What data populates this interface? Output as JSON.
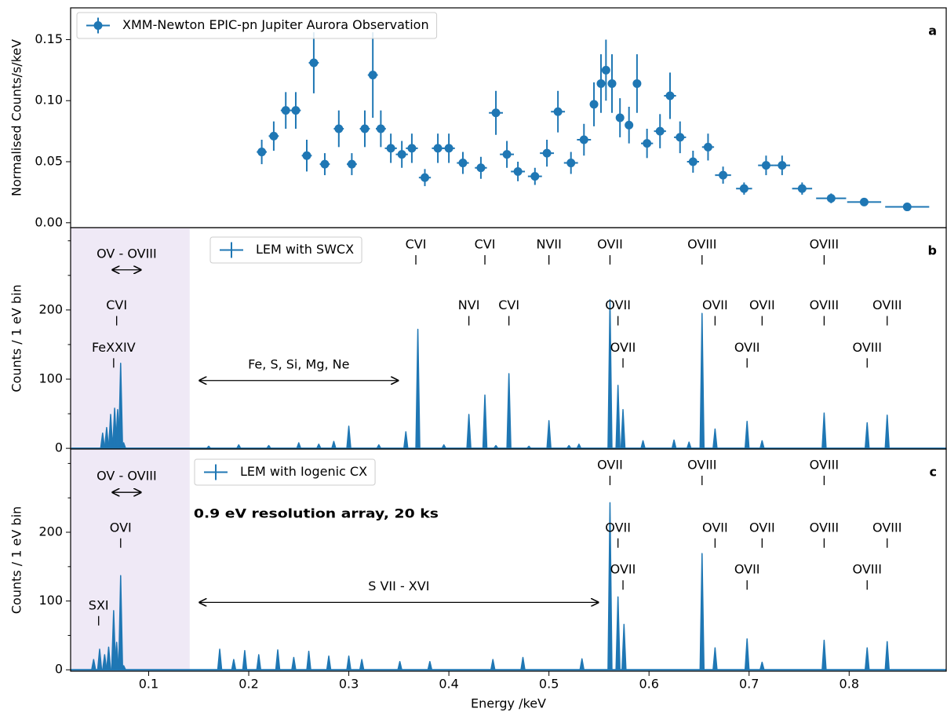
{
  "chart_data": [
    {
      "type": "errorbar",
      "panel_label": "a",
      "ylabel": "Normalised Counts/s/keV",
      "xlim": [
        0.022,
        0.897
      ],
      "ylim": [
        -0.004,
        0.176
      ],
      "yticks": [
        {
          "value": 0,
          "label": "0.00"
        },
        0.05,
        {
          "value": 0.1,
          "label": "0.10"
        },
        0.15
      ],
      "series": [
        {
          "name": "XMM-Newton EPIC-pn Jupiter Aurora Observation",
          "color": "#1f77b4",
          "x": [
            0.213,
            0.225,
            0.237,
            0.247,
            0.258,
            0.265,
            0.276,
            0.29,
            0.303,
            0.316,
            0.324,
            0.332,
            0.342,
            0.353,
            0.363,
            0.376,
            0.389,
            0.4,
            0.414,
            0.432,
            0.447,
            0.458,
            0.469,
            0.486,
            0.498,
            0.509,
            0.522,
            0.535,
            0.545,
            0.552,
            0.557,
            0.563,
            0.571,
            0.58,
            0.588,
            0.598,
            0.611,
            0.621,
            0.631,
            0.644,
            0.659,
            0.674,
            0.695,
            0.717,
            0.733,
            0.753,
            0.782,
            0.815,
            0.858
          ],
          "values": [
            0.058,
            0.071,
            0.092,
            0.092,
            0.055,
            0.131,
            0.048,
            0.077,
            0.048,
            0.077,
            0.121,
            0.077,
            0.061,
            0.056,
            0.061,
            0.037,
            0.061,
            0.061,
            0.049,
            0.045,
            0.09,
            0.056,
            0.042,
            0.038,
            0.057,
            0.091,
            0.049,
            0.068,
            0.097,
            0.114,
            0.125,
            0.114,
            0.086,
            0.08,
            0.114,
            0.065,
            0.075,
            0.104,
            0.07,
            0.05,
            0.062,
            0.039,
            0.028,
            0.047,
            0.047,
            0.028,
            0.02,
            0.017,
            0.013
          ],
          "xerr": [
            0.005,
            0.005,
            0.005,
            0.005,
            0.005,
            0.005,
            0.005,
            0.005,
            0.005,
            0.005,
            0.005,
            0.005,
            0.006,
            0.006,
            0.006,
            0.006,
            0.006,
            0.006,
            0.006,
            0.006,
            0.007,
            0.007,
            0.007,
            0.007,
            0.007,
            0.007,
            0.007,
            0.007,
            0.004,
            0.004,
            0.004,
            0.004,
            0.004,
            0.004,
            0.004,
            0.006,
            0.006,
            0.006,
            0.006,
            0.006,
            0.006,
            0.008,
            0.008,
            0.008,
            0.008,
            0.01,
            0.015,
            0.017,
            0.022
          ],
          "yerr": [
            0.01,
            0.012,
            0.015,
            0.015,
            0.013,
            0.025,
            0.009,
            0.015,
            0.009,
            0.015,
            0.035,
            0.015,
            0.012,
            0.011,
            0.012,
            0.007,
            0.012,
            0.012,
            0.009,
            0.009,
            0.018,
            0.011,
            0.008,
            0.007,
            0.011,
            0.017,
            0.009,
            0.013,
            0.018,
            0.024,
            0.025,
            0.024,
            0.016,
            0.015,
            0.024,
            0.012,
            0.014,
            0.019,
            0.013,
            0.009,
            0.011,
            0.007,
            0.005,
            0.008,
            0.008,
            0.005,
            0.004,
            0.003,
            0.002
          ]
        }
      ]
    },
    {
      "type": "line",
      "panel_label": "b",
      "ylabel": "Counts / 1 eV bin",
      "xlim": [
        0.022,
        0.897
      ],
      "ylim": [
        -1,
        319
      ],
      "yticks": [
        0,
        100,
        200
      ],
      "yminor": [
        50,
        150,
        250,
        300
      ],
      "span": [
        0.022,
        0.141
      ],
      "series": [
        {
          "name": "LEM with SWCX",
          "color": "#1f77b4",
          "x": [
            0.054,
            0.058,
            0.062,
            0.066,
            0.069,
            0.072,
            0.075,
            0.16,
            0.19,
            0.22,
            0.25,
            0.27,
            0.285,
            0.3,
            0.33,
            0.357,
            0.369,
            0.395,
            0.42,
            0.436,
            0.447,
            0.46,
            0.48,
            0.5,
            0.52,
            0.53,
            0.561,
            0.569,
            0.574,
            0.594,
            0.625,
            0.64,
            0.653,
            0.666,
            0.698,
            0.713,
            0.775,
            0.818,
            0.838
          ],
          "values": [
            22,
            30,
            49,
            58,
            56,
            123,
            8,
            3,
            5,
            4,
            8,
            6,
            10,
            32,
            5,
            24,
            172,
            5,
            49,
            77,
            4,
            108,
            3,
            40,
            4,
            6,
            215,
            91,
            56,
            11,
            12,
            9,
            195,
            28,
            39,
            11,
            51,
            37,
            48
          ]
        }
      ],
      "annotations": [
        {
          "text": "CVI",
          "x": 0.367,
          "y": 294
        },
        {
          "text": "CVI",
          "x": 0.436,
          "y": 294
        },
        {
          "text": "NVII",
          "x": 0.5,
          "y": 294
        },
        {
          "text": "OVII",
          "x": 0.561,
          "y": 294
        },
        {
          "text": "OVIII",
          "x": 0.653,
          "y": 294
        },
        {
          "text": "OVIII",
          "x": 0.775,
          "y": 294
        },
        {
          "text": "CVI",
          "x": 0.068,
          "y": 206
        },
        {
          "text": "NVI",
          "x": 0.42,
          "y": 206
        },
        {
          "text": "CVI",
          "x": 0.46,
          "y": 206
        },
        {
          "text": "OVII",
          "x": 0.569,
          "y": 206
        },
        {
          "text": "OVII",
          "x": 0.666,
          "y": 206
        },
        {
          "text": "OVII",
          "x": 0.713,
          "y": 206
        },
        {
          "text": "OVIII",
          "x": 0.775,
          "y": 206
        },
        {
          "text": "OVIII",
          "x": 0.838,
          "y": 206
        },
        {
          "text": "FeXXIV",
          "x": 0.065,
          "y": 145
        },
        {
          "text": "OVII",
          "x": 0.574,
          "y": 145
        },
        {
          "text": "OVII",
          "x": 0.698,
          "y": 145
        },
        {
          "text": "OVIII",
          "x": 0.818,
          "y": 145
        }
      ],
      "ranges": [
        {
          "text": "OV - OVIII",
          "x": [
            0.063,
            0.093
          ],
          "y": 258
        },
        {
          "text": "Fe, S, Si, Mg, Ne",
          "x": [
            0.15,
            0.35
          ],
          "y": 98
        }
      ]
    },
    {
      "type": "line",
      "panel_label": "c",
      "ylabel": "Counts / 1 eV bin",
      "xlabel": "Energy /keV",
      "xlim": [
        0.022,
        0.897
      ],
      "ylim": [
        -2,
        321
      ],
      "yticks": [
        0,
        100,
        200
      ],
      "yminor": [
        50,
        150,
        250,
        300
      ],
      "xticks": [
        0.1,
        0.2,
        0.3,
        0.4,
        0.5,
        0.6,
        0.7,
        0.8
      ],
      "span": [
        0.022,
        0.141
      ],
      "series": [
        {
          "name": "LEM with Iogenic CX",
          "color": "#1f77b4",
          "x": [
            0.045,
            0.051,
            0.056,
            0.06,
            0.065,
            0.068,
            0.072,
            0.075,
            0.171,
            0.185,
            0.196,
            0.21,
            0.229,
            0.245,
            0.26,
            0.28,
            0.3,
            0.313,
            0.351,
            0.381,
            0.444,
            0.474,
            0.533,
            0.561,
            0.569,
            0.575,
            0.653,
            0.666,
            0.698,
            0.713,
            0.775,
            0.818,
            0.838
          ],
          "values": [
            15,
            30,
            22,
            33,
            86,
            40,
            137,
            6,
            30,
            15,
            28,
            22,
            29,
            18,
            27,
            20,
            20,
            15,
            12,
            12,
            15,
            18,
            16,
            243,
            106,
            66,
            169,
            32,
            45,
            11,
            43,
            32,
            41
          ]
        }
      ],
      "annotations": [
        {
          "text": "OVII",
          "x": 0.561,
          "y": 297
        },
        {
          "text": "OVIII",
          "x": 0.653,
          "y": 297
        },
        {
          "text": "OVIII",
          "x": 0.775,
          "y": 297
        },
        {
          "text": "OVI",
          "x": 0.072,
          "y": 206
        },
        {
          "text": "OVII",
          "x": 0.569,
          "y": 206
        },
        {
          "text": "OVII",
          "x": 0.666,
          "y": 206
        },
        {
          "text": "OVII",
          "x": 0.713,
          "y": 206
        },
        {
          "text": "OVIII",
          "x": 0.775,
          "y": 206
        },
        {
          "text": "OVIII",
          "x": 0.838,
          "y": 206
        },
        {
          "text": "SXI",
          "x": 0.05,
          "y": 93
        },
        {
          "text": "OVII",
          "x": 0.574,
          "y": 145
        },
        {
          "text": "OVII",
          "x": 0.698,
          "y": 145
        },
        {
          "text": "OVIII",
          "x": 0.818,
          "y": 145
        }
      ],
      "ranges": [
        {
          "text": "OV - OVIII",
          "x": [
            0.063,
            0.093
          ],
          "y": 258
        },
        {
          "text": "S VII - XVI",
          "x": [
            0.15,
            0.55
          ],
          "y": 98
        }
      ],
      "highlight": {
        "text": "0.9 eV resolution array, 20 ks",
        "x": 0.145,
        "y": 226,
        "color": "#2aaee3"
      }
    }
  ]
}
